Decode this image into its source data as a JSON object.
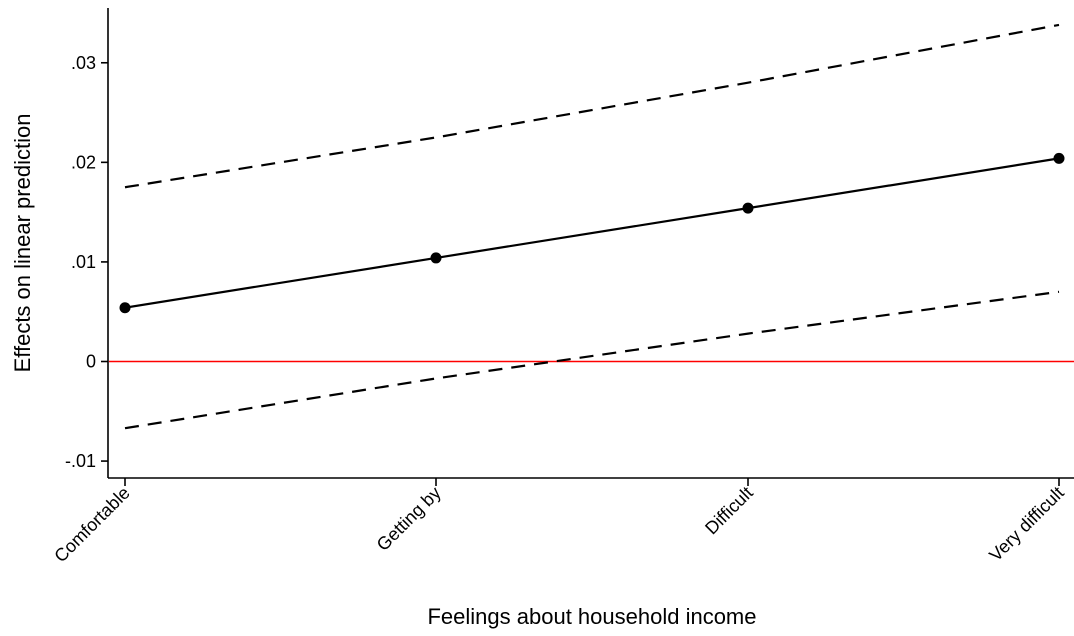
{
  "chart_data": {
    "type": "line",
    "title": "",
    "xlabel": "Feelings about household income",
    "ylabel": "Effects on linear prediction",
    "categories": [
      "Comfortable",
      "Getting by",
      "Difficult",
      "Very difficult"
    ],
    "ylim": [
      -0.0117,
      0.0355
    ],
    "yticks": [
      -0.01,
      0,
      0.01,
      0.02,
      0.03
    ],
    "ytick_labels": [
      "-.01",
      "0",
      ".01",
      ".02",
      ".03"
    ],
    "series": [
      {
        "values": [
          0.0054,
          0.0104,
          0.0154,
          0.0204
        ],
        "style": "solid",
        "markers": true,
        "color": "#000000"
      },
      {
        "values": [
          0.0175,
          0.0225,
          0.028,
          0.0338
        ],
        "style": "dashed",
        "markers": false,
        "color": "#000000"
      },
      {
        "values": [
          -0.0067,
          -0.0017,
          0.0028,
          0.007
        ],
        "style": "dashed",
        "markers": false,
        "color": "#000000"
      }
    ],
    "reference_line": {
      "y": 0,
      "color": "#ff0000"
    },
    "grid": false,
    "legend": "none"
  }
}
